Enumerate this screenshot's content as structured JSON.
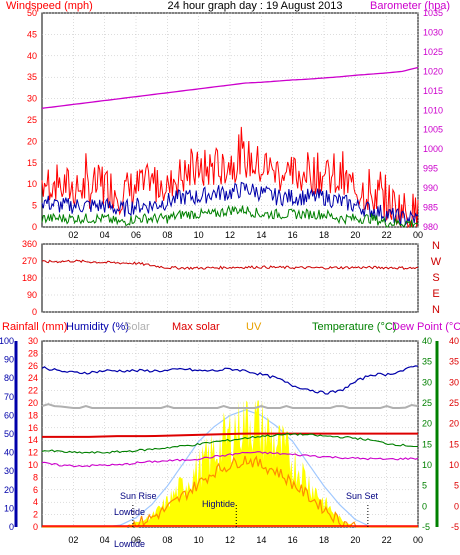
{
  "title": "24 hour graph day : 19 August 2013",
  "colors": {
    "wind": "#ff0000",
    "gust_avg": "#0000aa",
    "wind_avg": "#008000",
    "barometer": "#cc00cc",
    "direction": "#cc0000",
    "humidity": "#0000aa",
    "solar": "#b0b0b0",
    "maxsolar": "#dd0000",
    "uv": "#e8a000",
    "temperature": "#008000",
    "dewpoint": "#cc00cc",
    "rain": "#ff0000",
    "yellowfill": "#ffff00",
    "orange": "#ff8c00",
    "sky": "#a0c8ff",
    "axis_left": "#ff0000",
    "axis_right": "#cc00cc",
    "hum_axis": "#0000aa",
    "temp_axis": "#008000",
    "dew_axis": "#dd0000"
  },
  "top": {
    "left_label": "Windspeed (mph)",
    "right_label": "Barometer (hpa)",
    "left_ticks": [
      "0",
      "5",
      "10",
      "15",
      "20",
      "25",
      "30",
      "35",
      "40",
      "45",
      "50"
    ],
    "right_ticks": [
      "980",
      "985",
      "990",
      "995",
      "1000",
      "1005",
      "1010",
      "1015",
      "1020",
      "1025",
      "1030",
      "1035"
    ]
  },
  "direction": {
    "ticks": [
      "0",
      "90",
      "180",
      "270",
      "360"
    ],
    "compass": [
      "N",
      "W",
      "S",
      "E",
      "N"
    ]
  },
  "bottom": {
    "labels": {
      "rainfall": "Rainfall (mm)",
      "humidity": "Humidity (%)",
      "solar": "Solar",
      "maxsolar": "Max solar",
      "uv": "UV",
      "temperature": "Temperature (°C)",
      "dewpoint": "Dew Point (°C)"
    },
    "hum_ticks": [
      "0",
      "10",
      "20",
      "30",
      "40",
      "50",
      "60",
      "70",
      "80",
      "90",
      "100"
    ],
    "rain_ticks": [
      "0",
      "2",
      "4",
      "6",
      "8",
      "10",
      "12",
      "14",
      "16",
      "18",
      "20",
      "22",
      "24",
      "26",
      "28",
      "30"
    ],
    "temp_ticks": [
      "-5",
      "0",
      "5",
      "10",
      "15",
      "20",
      "25",
      "30",
      "35",
      "40"
    ],
    "dew_ticks": [
      "-5",
      "0",
      "5",
      "10",
      "15",
      "20",
      "25",
      "30",
      "35",
      "40"
    ],
    "annotations": {
      "sunrise": "Sun Rise",
      "sunset": "Sun Set",
      "lowtide1": "Lowtide",
      "lowtide2": "Lowtide",
      "hightide": "Hightide"
    }
  },
  "x_ticks": [
    "02",
    "04",
    "06",
    "08",
    "10",
    "12",
    "14",
    "16",
    "18",
    "20",
    "22",
    "00"
  ],
  "chart_data": [
    {
      "type": "line",
      "title": "24 hour graph day : 19 August 2013",
      "x": [
        0,
        1,
        2,
        3,
        4,
        5,
        6,
        7,
        8,
        9,
        10,
        11,
        12,
        13,
        14,
        15,
        16,
        17,
        18,
        19,
        20,
        21,
        22,
        23,
        24
      ],
      "xlabel": "",
      "ylabel": "Windspeed (mph)",
      "ylim": [
        0,
        50
      ],
      "y2label": "Barometer (hpa)",
      "y2lim": [
        980,
        1035
      ],
      "series": [
        {
          "name": "Windspeed (mph)",
          "axis": "left",
          "values": [
            11,
            10,
            9,
            9,
            10,
            8,
            9,
            10,
            11,
            12,
            13,
            14,
            15,
            16,
            14,
            13,
            12,
            13,
            12,
            11,
            9,
            8,
            6,
            4,
            3
          ]
        },
        {
          "name": "",
          "axis": "left",
          "values": [
            6,
            5,
            5,
            5,
            5,
            4,
            5,
            5,
            6,
            7,
            7,
            8,
            8,
            9,
            8,
            7,
            7,
            7,
            7,
            6,
            5,
            4,
            3,
            2,
            2
          ]
        },
        {
          "name": "",
          "axis": "left",
          "values": [
            2,
            2,
            2,
            2,
            2,
            1,
            2,
            2,
            2,
            3,
            3,
            3,
            4,
            4,
            3,
            3,
            3,
            3,
            3,
            2,
            2,
            2,
            1,
            1,
            1
          ]
        },
        {
          "name": "Barometer (hpa)",
          "axis": "right",
          "values": [
            1010.5,
            1011,
            1011.5,
            1012,
            1012.5,
            1013,
            1013.5,
            1014,
            1014.5,
            1015,
            1015.5,
            1016,
            1016.5,
            1017,
            1017.2,
            1017.5,
            1017.8,
            1018,
            1018.3,
            1018.6,
            1019,
            1019.3,
            1019.6,
            1020,
            1021
          ]
        }
      ]
    },
    {
      "type": "line",
      "title": "",
      "x": [
        0,
        2,
        4,
        6,
        8,
        10,
        12,
        14,
        16,
        18,
        20,
        22,
        24
      ],
      "ylabel": "",
      "ylim": [
        0,
        360
      ],
      "series": [
        {
          "name": "",
          "values": [
            265,
            270,
            262,
            258,
            235,
            232,
            236,
            238,
            235,
            234,
            236,
            235,
            232
          ]
        }
      ]
    },
    {
      "type": "line",
      "title": "",
      "x": [
        0,
        1,
        2,
        3,
        4,
        5,
        6,
        7,
        8,
        9,
        10,
        11,
        12,
        13,
        14,
        15,
        16,
        17,
        18,
        19,
        20,
        21,
        22,
        23,
        24
      ],
      "ylim_humidity": [
        0,
        100
      ],
      "ylim_rainfall": [
        0,
        30
      ],
      "ylim_temperature": [
        -5,
        40
      ],
      "ylim_dewpoint": [
        -5,
        40
      ],
      "series": [
        {
          "name": "Humidity (%)",
          "axis": "humidity",
          "values": [
            86,
            84,
            83,
            83,
            84,
            84,
            84,
            84,
            84,
            85,
            84,
            84,
            85,
            84,
            82,
            80,
            76,
            74,
            72,
            73,
            78,
            82,
            82,
            84,
            87
          ]
        },
        {
          "name": "Solar",
          "axis": "solar",
          "values": [
            65,
            65,
            64,
            64,
            64,
            64,
            64,
            64,
            64,
            64,
            64,
            64,
            64,
            64,
            64,
            64,
            64,
            64,
            64,
            64,
            64,
            64,
            64,
            64,
            65
          ]
        },
        {
          "name": "Max solar",
          "axis": "temperature",
          "values": [
            16.8,
            16.8,
            16.8,
            16.8,
            16.9,
            17,
            17,
            17,
            17.1,
            17.2,
            17.3,
            17.4,
            17.5,
            17.6,
            17.6,
            17.6,
            17.6,
            17.6,
            17.6,
            17.6,
            17.6,
            17.6,
            17.6,
            17.6,
            17.6
          ]
        },
        {
          "name": "Temperature (°C)",
          "axis": "temperature",
          "values": [
            13.5,
            13.3,
            13,
            13,
            13,
            13.2,
            13.5,
            13.8,
            14.2,
            14.6,
            15,
            15.6,
            16,
            16.5,
            17,
            17.2,
            17.5,
            17.3,
            17,
            16.8,
            16.5,
            16,
            15.2,
            14.8,
            14.5
          ]
        },
        {
          "name": "Dew Point (°C)",
          "axis": "dewpoint",
          "values": [
            10.5,
            10,
            9.8,
            9.8,
            10,
            10,
            10.5,
            10.8,
            11,
            11.2,
            11.5,
            12,
            12.5,
            13,
            13,
            12.8,
            12.5,
            12.3,
            12,
            11.8,
            11.6,
            11.5,
            11.4,
            11.5,
            11.6
          ]
        },
        {
          "name": "UV",
          "axis": "rainfall",
          "values": [
            0,
            0,
            0,
            0,
            0,
            0,
            0.5,
            1.5,
            3,
            5,
            7,
            9,
            10,
            11,
            10,
            9,
            7,
            5,
            3,
            1,
            0,
            0,
            0,
            0,
            0
          ]
        },
        {
          "name": "",
          "axis": "solar",
          "values": [
            0,
            0,
            0,
            0,
            0,
            0,
            2,
            5,
            12,
            20,
            28,
            36,
            44,
            55,
            48,
            40,
            32,
            22,
            12,
            4,
            0,
            0,
            0,
            0,
            0
          ]
        },
        {
          "name": "",
          "axis": "solar",
          "values": [
            0,
            0,
            0,
            0,
            0,
            1,
            5,
            12,
            22,
            34,
            46,
            54,
            60,
            63,
            60,
            54,
            46,
            34,
            22,
            12,
            4,
            0,
            0,
            0,
            0
          ]
        }
      ],
      "annotations": [
        "Sun Rise",
        "Sun Set",
        "Lowtide",
        "Lowtide",
        "Hightide"
      ]
    }
  ]
}
